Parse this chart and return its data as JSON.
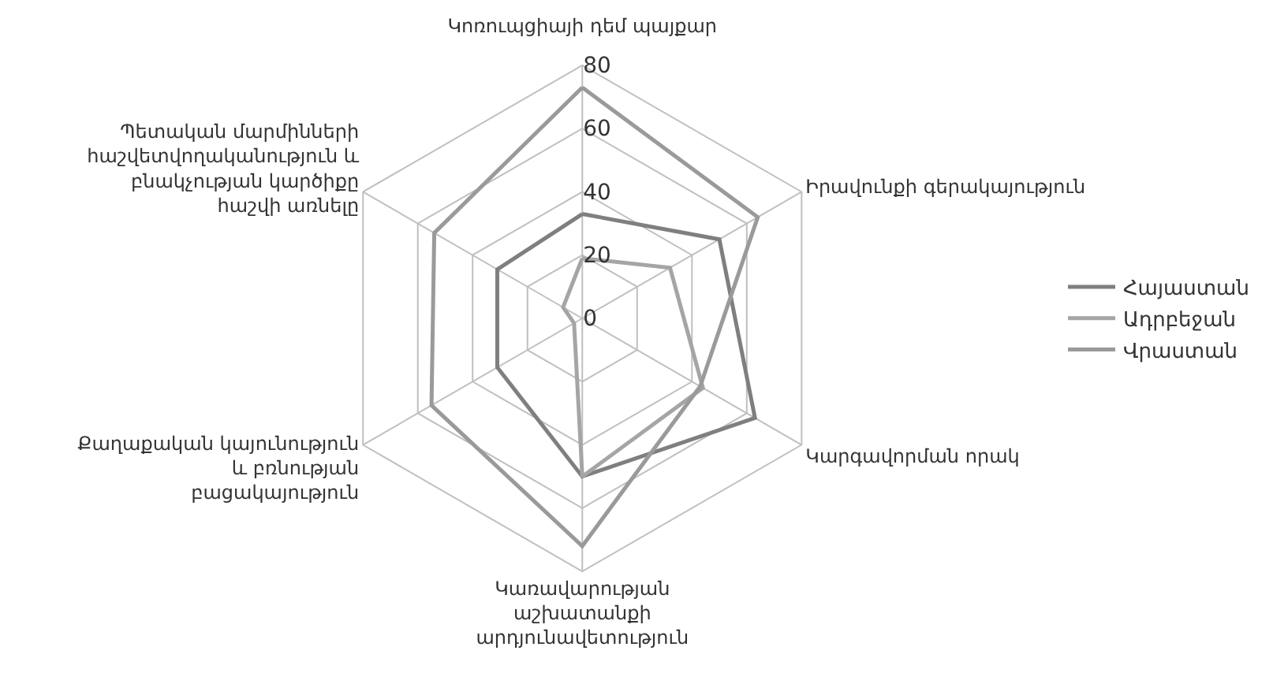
{
  "chart_data": {
    "type": "radar",
    "categories": [
      "Կոռուպցիայի դեմ պայքար",
      "Իրավունքի գերակայություն",
      "Կարգավորման որակ",
      "Կառավարության\nաշխատանքի\nարդյունավետություն",
      "Քաղաքական կայունություն\nև բռնության\nբացակայություն",
      "Պետական մարմինների\nհաշվետվողականություն և\nբնակչության կարծիքը\nհաշվի առնելը"
    ],
    "series": [
      {
        "name": "Հայաստան",
        "color": "#7f7f7f",
        "values": [
          33,
          50,
          63,
          50,
          31,
          31
        ]
      },
      {
        "name": "Ադրբեջան",
        "color": "#a5a5a5",
        "values": [
          19,
          32,
          44,
          50,
          3,
          7
        ]
      },
      {
        "name": "Վրաստան",
        "color": "#9a9a9a",
        "values": [
          73,
          64,
          43,
          72,
          55,
          54
        ]
      }
    ],
    "ylim": [
      0,
      80
    ],
    "yticks": [
      0,
      20,
      40,
      60,
      80
    ],
    "grid": true,
    "legend": "right",
    "marker": "none"
  }
}
